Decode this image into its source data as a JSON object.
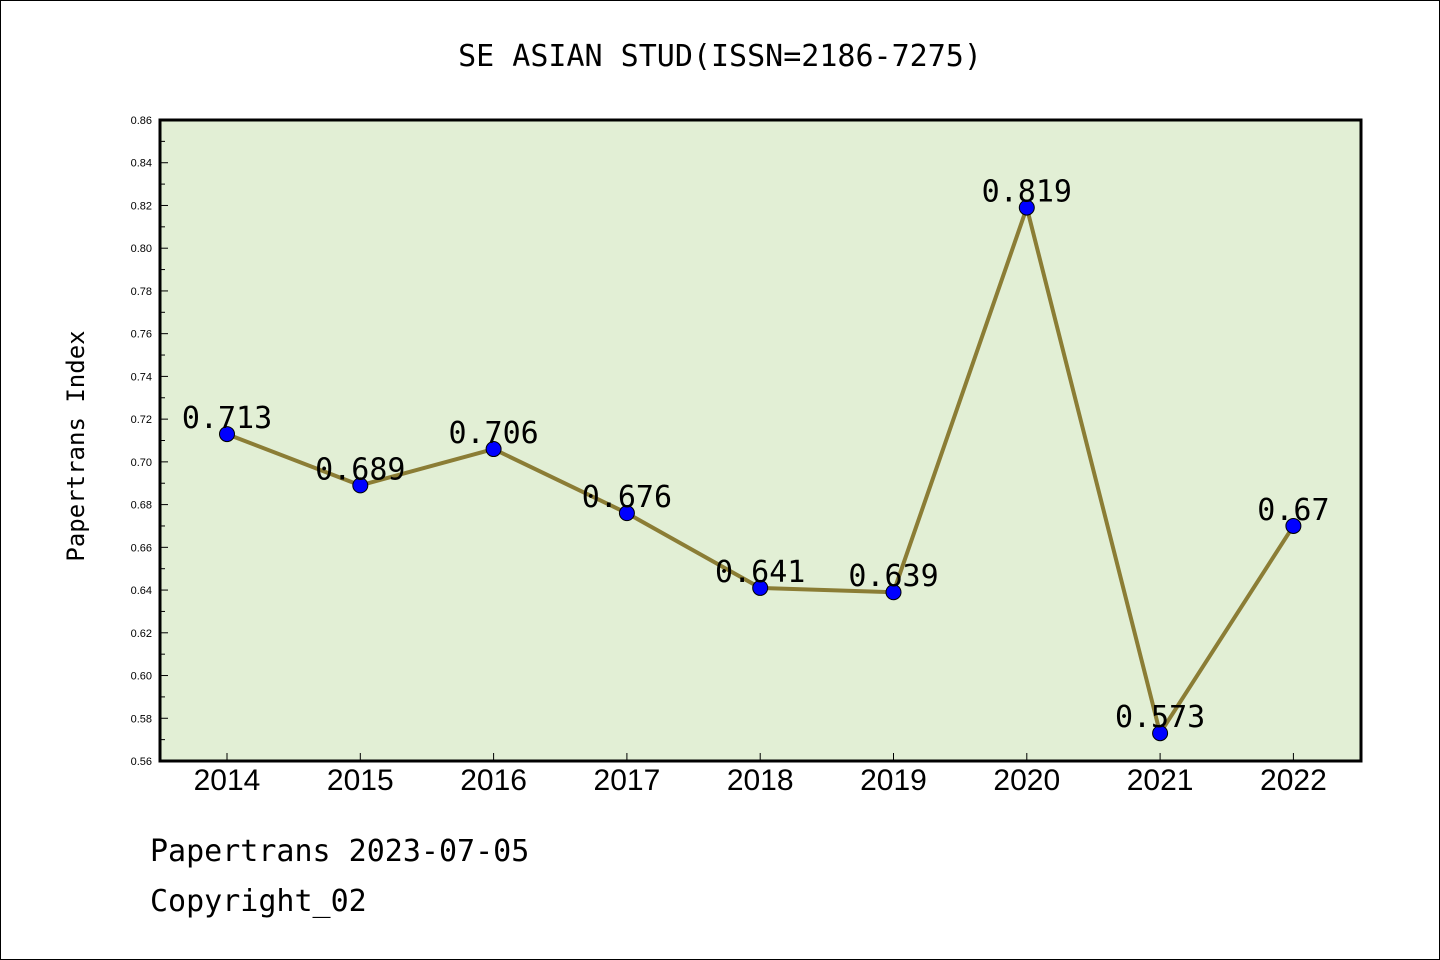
{
  "chart_data": {
    "type": "line",
    "title": "SE ASIAN STUD(ISSN=2186-7275)",
    "xlabel": "",
    "ylabel": "Papertrans Index",
    "categories": [
      "2014",
      "2015",
      "2016",
      "2017",
      "2018",
      "2019",
      "2020",
      "2021",
      "2022"
    ],
    "series": [
      {
        "values": [
          0.713,
          0.689,
          0.706,
          0.676,
          0.641,
          0.639,
          0.819,
          0.573,
          0.67
        ],
        "data_labels": [
          "0.713",
          "0.689",
          "0.706",
          "0.676",
          "0.641",
          "0.639",
          "0.819",
          "0.573",
          "0.67"
        ],
        "line_color": "#8b7d35",
        "marker_color": "#0000ff"
      }
    ],
    "ylim": [
      0.56,
      0.86
    ],
    "yticks": [
      "0.56",
      "0.58",
      "0.60",
      "0.62",
      "0.64",
      "0.66",
      "0.68",
      "0.70",
      "0.72",
      "0.74",
      "0.76",
      "0.78",
      "0.80",
      "0.82",
      "0.84",
      "0.86"
    ],
    "plot_background": "#e2efd5",
    "grid": false,
    "legend": "none"
  },
  "footer": {
    "source": "Papertrans 2023-07-05",
    "copyright": "Copyright_02"
  }
}
